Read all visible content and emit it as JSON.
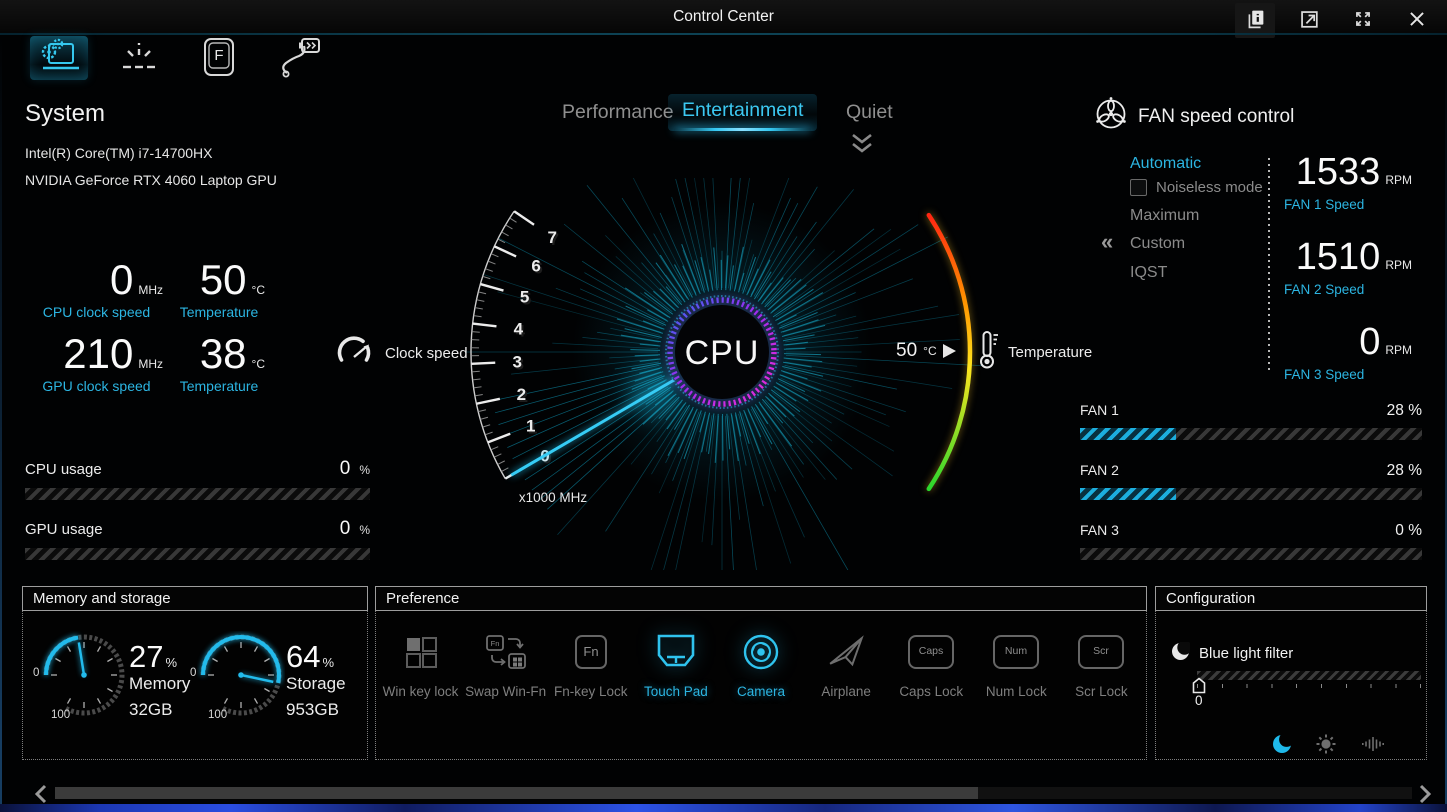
{
  "window": {
    "title": "Control Center"
  },
  "titlebar": {
    "icons": [
      "pages-info-icon",
      "restore-window-icon",
      "maximize-icon",
      "close-icon"
    ]
  },
  "nav": {
    "f_key_text": "F",
    "tabs": [
      {
        "icon": "system-monitor-icon",
        "active": true
      },
      {
        "icon": "keyboard-backlight-icon",
        "active": false
      },
      {
        "icon": "fn-key-icon",
        "active": false
      },
      {
        "icon": "power-adapter-icon",
        "active": false
      }
    ]
  },
  "system": {
    "heading": "System",
    "cpu_name": "Intel(R) Core(TM) i7-14700HX",
    "gpu_name": "NVIDIA GeForce RTX 4060 Laptop GPU",
    "stats": [
      {
        "value": "0",
        "unit": "MHz",
        "label": "CPU clock speed"
      },
      {
        "value": "50",
        "unit": "°C",
        "label": "Temperature"
      },
      {
        "value": "210",
        "unit": "MHz",
        "label": "GPU clock speed"
      },
      {
        "value": "38",
        "unit": "°C",
        "label": "Temperature"
      }
    ],
    "usage": [
      {
        "label": "CPU usage",
        "value": "0",
        "unit": "%",
        "percent": 0
      },
      {
        "label": "GPU usage",
        "value": "0",
        "unit": "%",
        "percent": 0
      }
    ]
  },
  "modes": {
    "tabs": [
      {
        "label": "Performance",
        "active": false
      },
      {
        "label": "Entertainment",
        "active": true
      },
      {
        "label": "Quiet",
        "active": false
      }
    ]
  },
  "gauge": {
    "center_label": "CPU",
    "scale_labels": [
      "0",
      "1",
      "2",
      "3",
      "4",
      "5",
      "6",
      "7"
    ],
    "scale_unit": "x1000 MHz",
    "needle_value": 0,
    "clock_speed_label": "Clock speed",
    "temperature_label": "Temperature",
    "temp_value": "50",
    "temp_unit": "°C"
  },
  "fan_control": {
    "heading": "FAN speed control",
    "custom_marker": "«",
    "modes": [
      {
        "label": "Automatic",
        "active": true
      },
      {
        "label": "Noiseless mode",
        "checkbox": true,
        "checked": false
      },
      {
        "label": "Maximum",
        "active": false
      },
      {
        "label": "Custom",
        "active": false,
        "marked": true
      },
      {
        "label": "IQST",
        "active": false
      }
    ],
    "speeds": [
      {
        "value": "1533",
        "unit": "RPM",
        "label": "FAN 1 Speed"
      },
      {
        "value": "1510",
        "unit": "RPM",
        "label": "FAN 2 Speed"
      },
      {
        "value": "0",
        "unit": "RPM",
        "label": "FAN 3 Speed"
      }
    ],
    "bars": [
      {
        "label": "FAN 1",
        "value_text": "28 %",
        "percent": 28
      },
      {
        "label": "FAN 2",
        "value_text": "28 %",
        "percent": 28
      },
      {
        "label": "FAN 3",
        "value_text": "0 %",
        "percent": 0
      }
    ]
  },
  "memory_storage": {
    "heading": "Memory and storage",
    "gauges": [
      {
        "percent": "27",
        "unit": "%",
        "label": "Memory",
        "capacity": "32GB",
        "value": 27,
        "scale_min": "0",
        "scale_max": "100"
      },
      {
        "percent": "64",
        "unit": "%",
        "label": "Storage",
        "capacity": "953GB",
        "value": 64,
        "scale_min": "0",
        "scale_max": "100"
      }
    ]
  },
  "preference": {
    "heading": "Preference",
    "key_texts": {
      "fn": "Fn",
      "caps": "Caps",
      "num": "Num",
      "scr": "Scr"
    },
    "items": [
      {
        "label": "Win key lock",
        "icon": "win-key-lock-icon",
        "active": false
      },
      {
        "label": "Swap Win-Fn",
        "icon": "swap-win-fn-icon",
        "active": false
      },
      {
        "label": "Fn-key Lock",
        "icon": "fn-key-lock-icon",
        "active": false
      },
      {
        "label": "Touch Pad",
        "icon": "touchpad-icon",
        "active": true
      },
      {
        "label": "Camera",
        "icon": "camera-icon",
        "active": true
      },
      {
        "label": "Airplane",
        "icon": "airplane-icon",
        "active": false
      },
      {
        "label": "Caps Lock",
        "icon": "caps-lock-icon",
        "active": false
      },
      {
        "label": "Num Lock",
        "icon": "num-lock-icon",
        "active": false
      },
      {
        "label": "Scr Lock",
        "icon": "scr-lock-icon",
        "active": false
      }
    ]
  },
  "configuration": {
    "heading": "Configuration",
    "blue_light": {
      "label": "Blue light filter",
      "value": "0",
      "slider_percent": 0
    },
    "footer_icons": [
      {
        "icon": "blue-light-moon-icon",
        "active": true
      },
      {
        "icon": "brightness-icon",
        "active": false
      },
      {
        "icon": "volume-wave-icon",
        "active": false
      }
    ]
  },
  "colors": {
    "accent": "#2cb5e2",
    "accent_bright": "#36ccf5",
    "ray": "#10b4da",
    "temp_arc": [
      "#ff2014",
      "#ff9400",
      "#ffe41e",
      "#1ed62e"
    ]
  }
}
